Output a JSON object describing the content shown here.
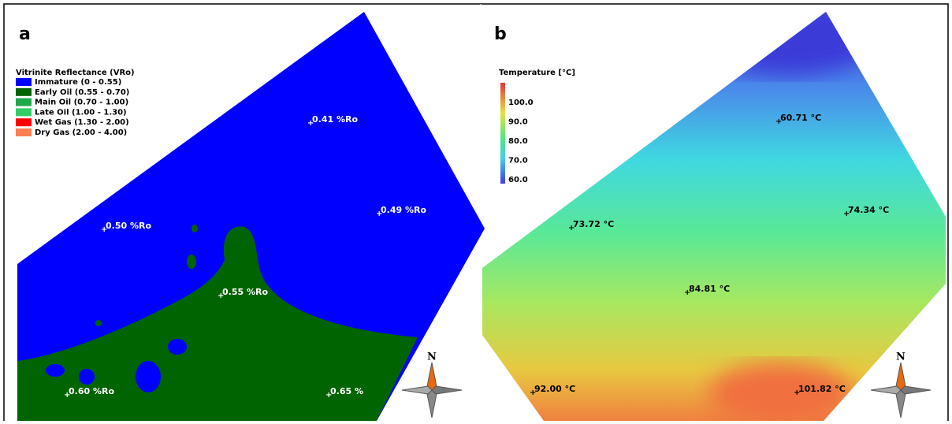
{
  "panels": [
    {
      "label": "a",
      "legend": {
        "title": "Vitrinite Reflectance (VRo)",
        "items": [
          {
            "label": "Immature (0 - 0.55)",
            "color": "#0000ff"
          },
          {
            "label": "Early Oil (0.55 - 0.70)",
            "color": "#006400"
          },
          {
            "label": "Main Oil (0.70 - 1.00)",
            "color": "#1fa84a"
          },
          {
            "label": "Late Oil (1.00 - 1.30)",
            "color": "#33cc66"
          },
          {
            "label": "Wet Gas (1.30 - 2.00)",
            "color": "#ff0000"
          },
          {
            "label": "Dry Gas (2.00 - 4.00)",
            "color": "#ff7f50"
          }
        ]
      },
      "wells": [
        "0.41 %Ro",
        "0.49 %Ro",
        "0.50 %Ro",
        "0.55 %Ro",
        "0.60 %Ro",
        "0.65 %"
      ],
      "compass": "N"
    },
    {
      "label": "b",
      "colorbar": {
        "title": "Temperature [°C]",
        "ticks": [
          "100.0",
          "90.0",
          "80.0",
          "70.0",
          "60.0"
        ]
      },
      "wells": [
        "60.71 °C",
        "74.34 °C",
        "73.72 °C",
        "84.81 °C",
        "92.00 °C",
        "101.82 °C"
      ],
      "compass": "N"
    }
  ]
}
